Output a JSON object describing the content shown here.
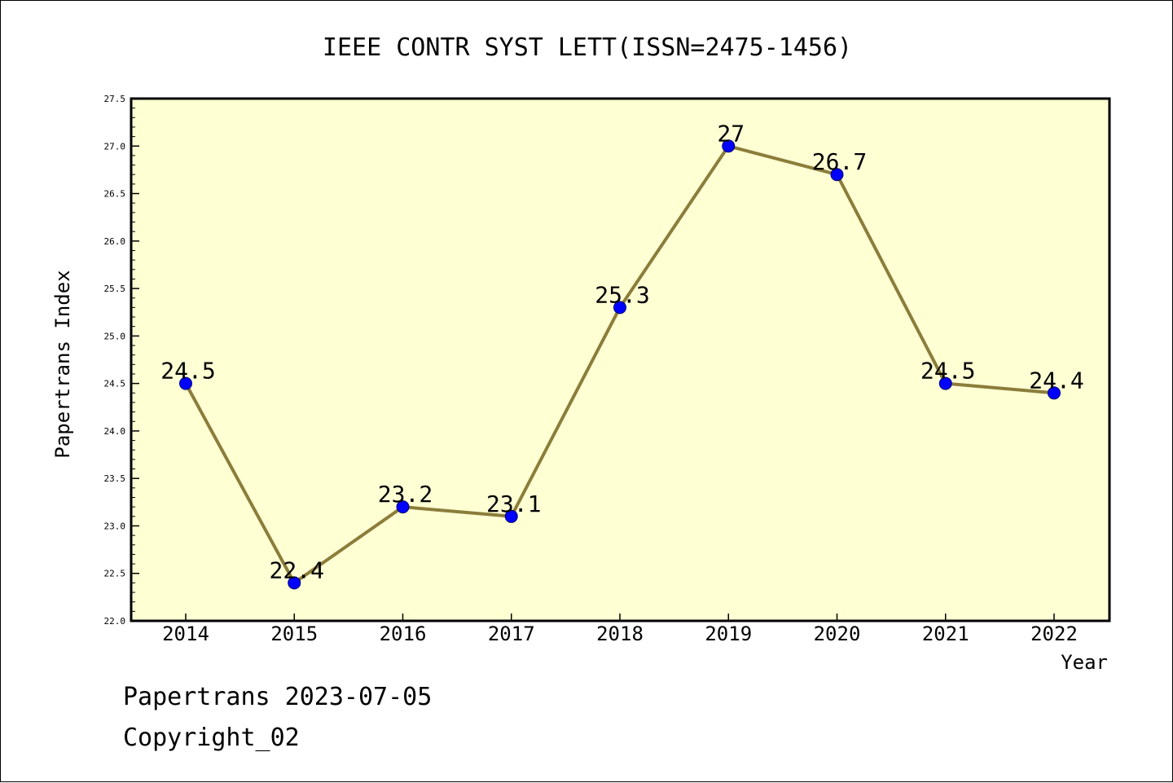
{
  "chart_data": {
    "type": "line",
    "title": "IEEE CONTR SYST LETT(ISSN=2475-1456)",
    "xlabel": "Year",
    "ylabel": "Papertrans Index",
    "categories": [
      "2014",
      "2015",
      "2016",
      "2017",
      "2018",
      "2019",
      "2020",
      "2021",
      "2022"
    ],
    "values": [
      24.5,
      22.4,
      23.2,
      23.1,
      25.3,
      27,
      26.7,
      24.5,
      24.4
    ],
    "data_labels": [
      "24.5",
      "22.4",
      "23.2",
      "23.1",
      "25.3",
      "27",
      "26.7",
      "24.5",
      "24.4"
    ],
    "ylim": [
      22.0,
      27.5
    ],
    "yticks": [
      "22.0",
      "22.5",
      "23.0",
      "23.5",
      "24.0",
      "24.5",
      "25.0",
      "25.5",
      "26.0",
      "26.5",
      "27.0",
      "27.5"
    ],
    "grid": false,
    "legend": "none",
    "colors": {
      "plot_background": "#ffffd4",
      "line": "#8b7d3a",
      "marker": "#0000ff"
    }
  },
  "footer": {
    "date_line": "Papertrans 2023-07-05",
    "copyright_line": "Copyright_02"
  }
}
